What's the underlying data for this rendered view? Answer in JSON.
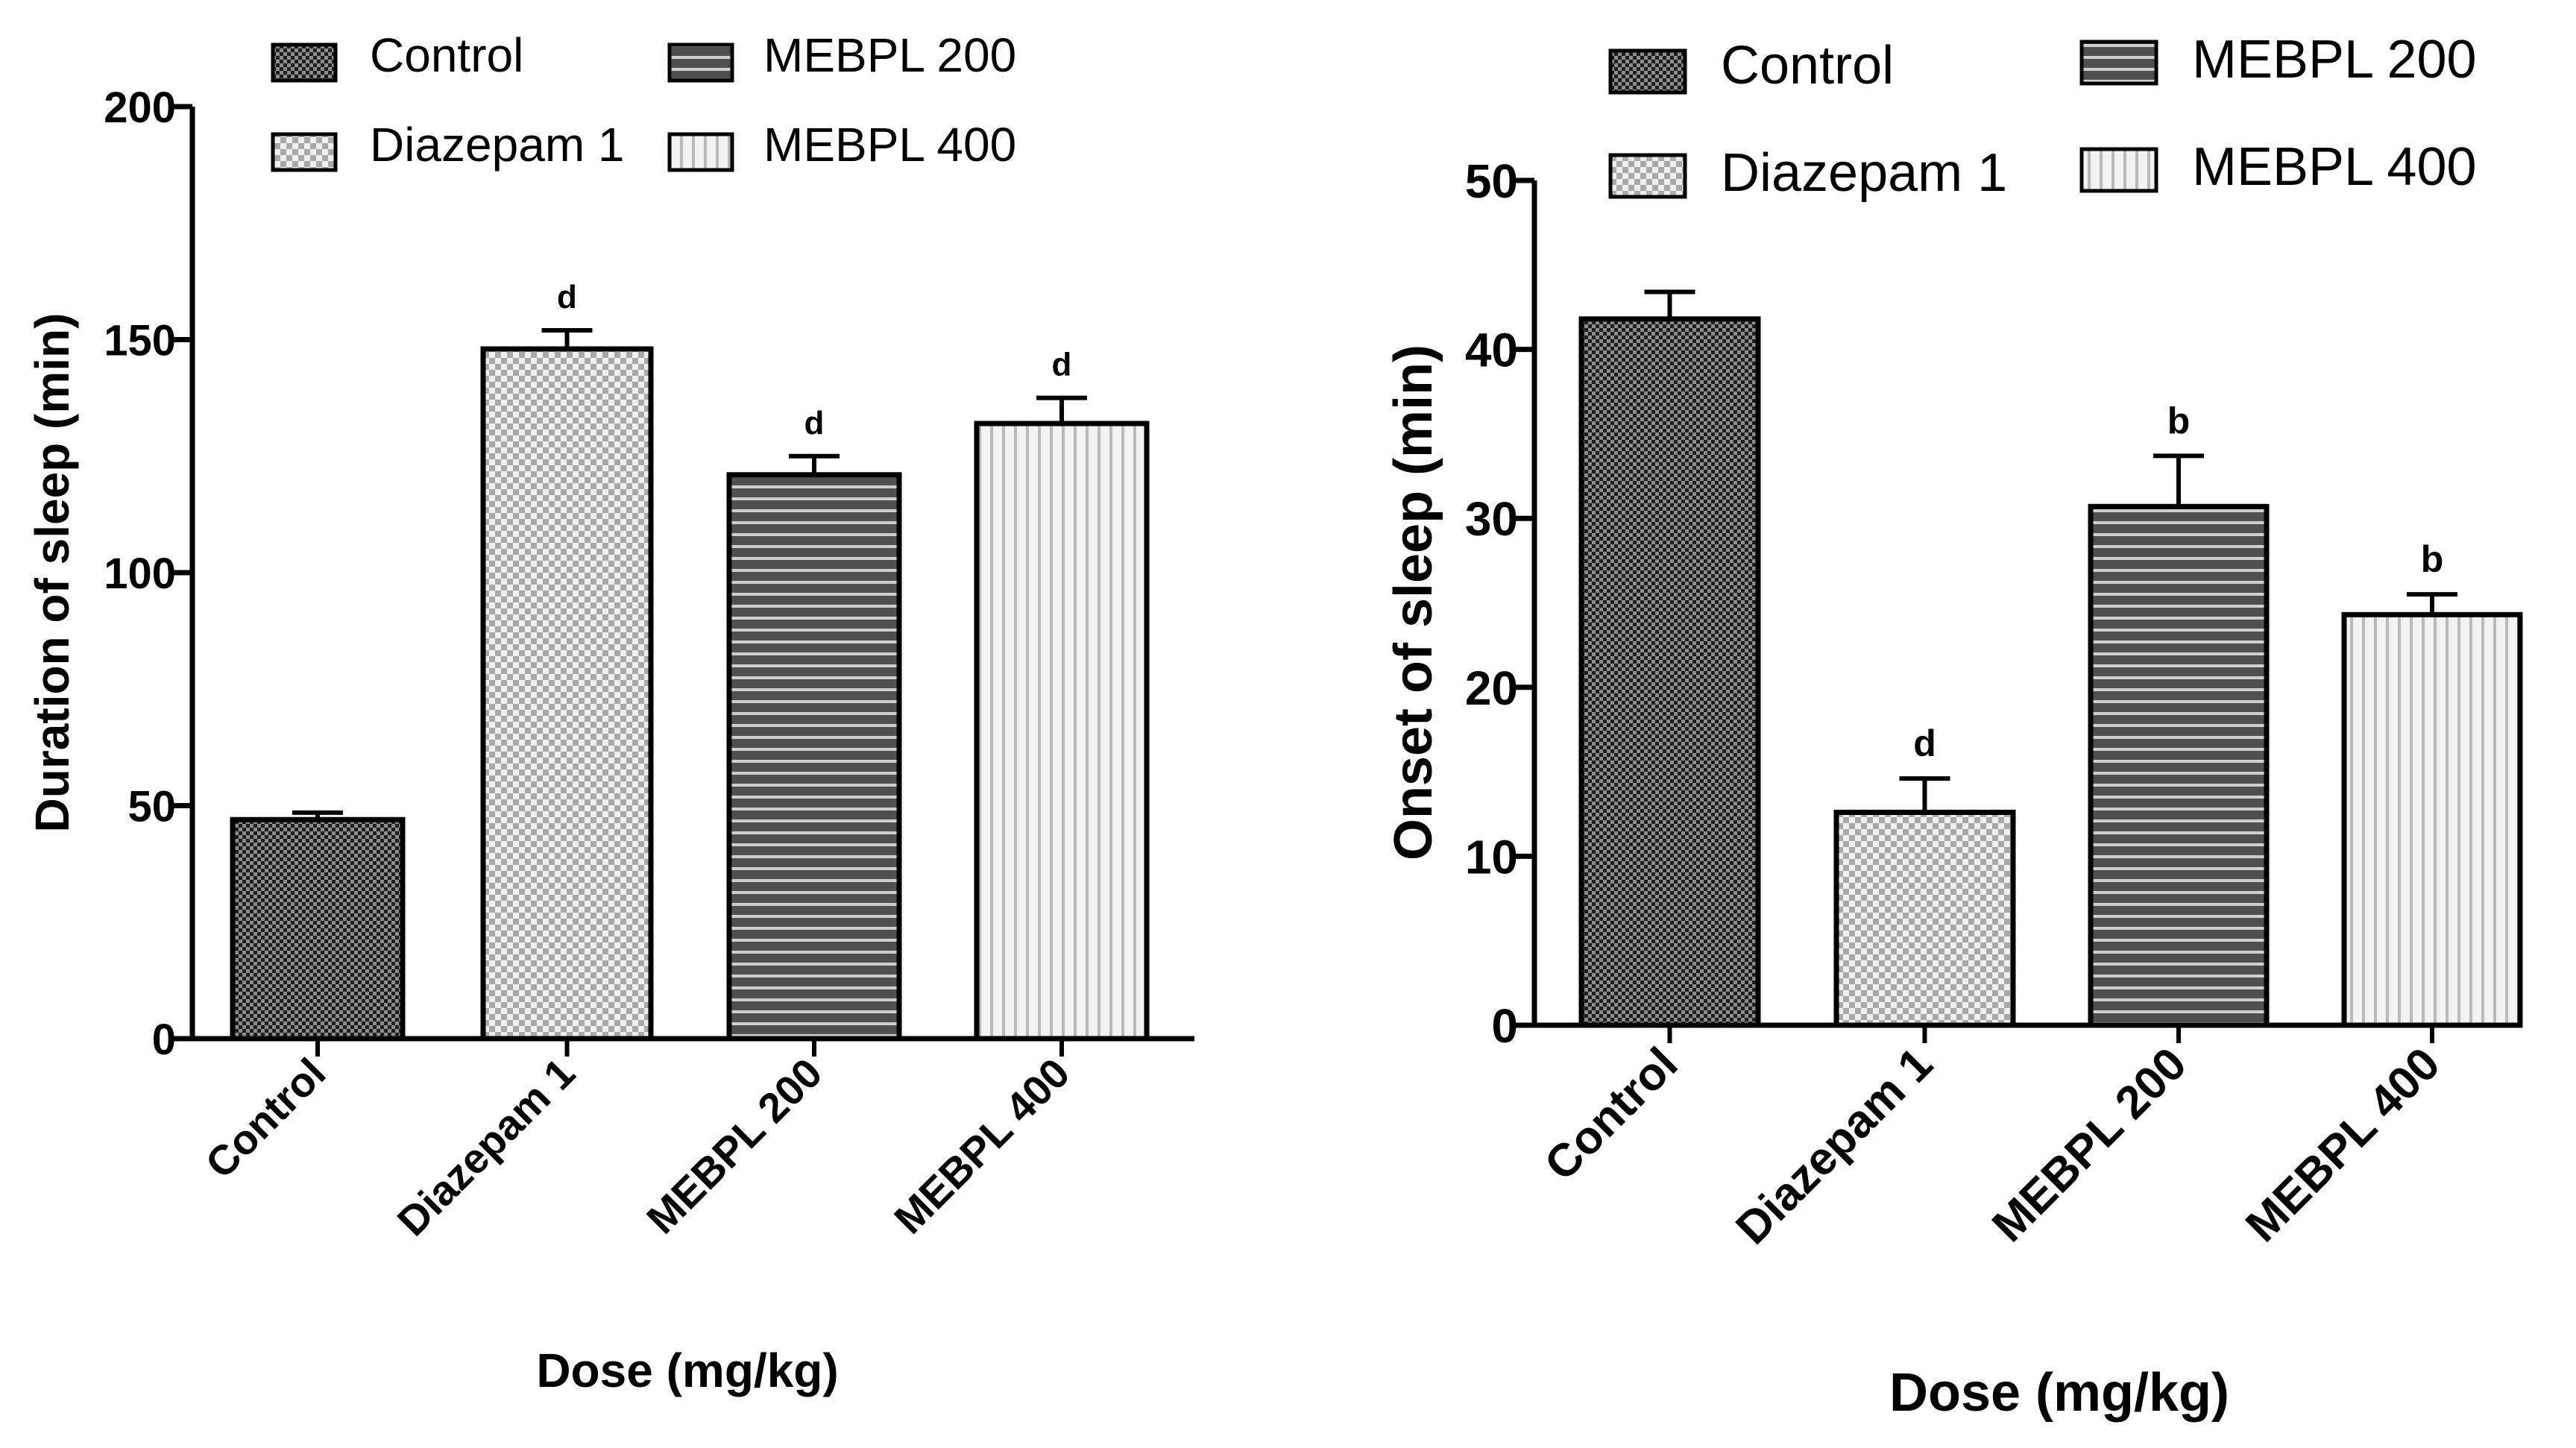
{
  "chart_data": [
    {
      "type": "bar",
      "title": "",
      "xlabel": "Dose (mg/kg)",
      "ylabel": "Duration of sleep (min)",
      "categories": [
        "Control",
        "Diazepam 1",
        "MEBPL 200",
        "MEBPL 400"
      ],
      "values": [
        47,
        148,
        121,
        132
      ],
      "errors": [
        1.5,
        4,
        4,
        5.5
      ],
      "annotations": [
        "",
        "d",
        "d",
        "d"
      ],
      "ylim": [
        0,
        200
      ],
      "yticks": [
        0,
        50,
        100,
        150,
        200
      ],
      "legend": [
        "Control",
        "MEBPL 200",
        "Diazepam 1",
        "MEBPL 400"
      ],
      "legend_position": "top"
    },
    {
      "type": "bar",
      "title": "",
      "xlabel": "Dose (mg/kg)",
      "ylabel": "Onset of sleep (min)",
      "categories": [
        "Control",
        "Diazepam 1",
        "MEBPL 200",
        "MEBPL 400"
      ],
      "values": [
        41.8,
        12.6,
        30.7,
        24.3
      ],
      "errors": [
        1.6,
        2,
        3,
        1.2
      ],
      "annotations": [
        "",
        "d",
        "b",
        "b"
      ],
      "ylim": [
        0,
        50
      ],
      "yticks": [
        0,
        10,
        20,
        30,
        40,
        50
      ],
      "legend": [
        "Control",
        "MEBPL 200",
        "Diazepam 1",
        "MEBPL 400"
      ],
      "legend_position": "top"
    }
  ]
}
